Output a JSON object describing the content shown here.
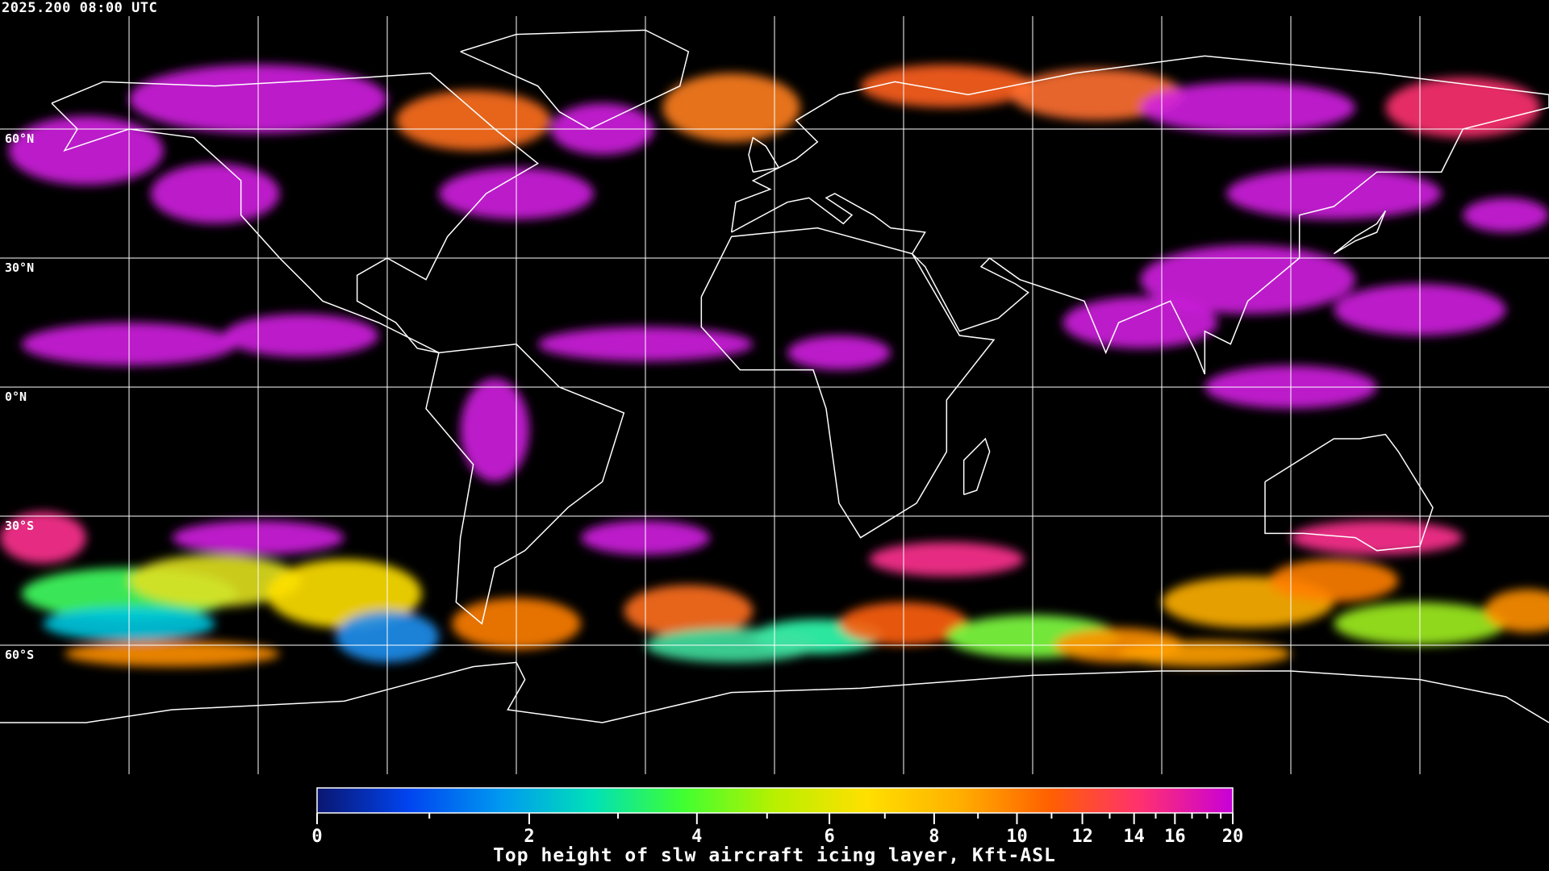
{
  "timestamp": "2025.200 08:00 UTC",
  "map": {
    "projection": "equirectangular",
    "lon_range": [
      -180,
      180
    ],
    "lat_range": [
      -90,
      90
    ],
    "grid_lon_step": 30,
    "grid_lat_step": 30,
    "lat_labels": [
      "60°N",
      "30°N",
      "0°N",
      "30°S",
      "60°S"
    ],
    "grid_color": "#ffffff",
    "coastline_color": "#ffffff",
    "background": "#000000"
  },
  "chart_data": {
    "type": "heatmap",
    "title": "",
    "colorbar": {
      "label": "Top height of slw aircraft icing layer, Kft-ASL",
      "range": [
        0,
        20
      ],
      "scale": "nonlinear",
      "major_ticks": [
        0,
        2,
        4,
        6,
        8,
        10,
        12,
        14,
        16,
        20
      ],
      "tick_labels": [
        "0",
        "2",
        "4",
        "6",
        "8",
        "10",
        "12",
        "14",
        "16",
        "20"
      ],
      "minor_ticks": [
        1,
        3,
        5,
        7,
        9,
        11,
        13,
        15,
        17,
        18,
        19
      ],
      "colors": [
        "#0a1670",
        "#0044f0",
        "#0098f0",
        "#00e0b8",
        "#40ff30",
        "#b8f000",
        "#ffe000",
        "#ffb000",
        "#ff6000",
        "#ff3070",
        "#c800d8"
      ]
    }
  }
}
